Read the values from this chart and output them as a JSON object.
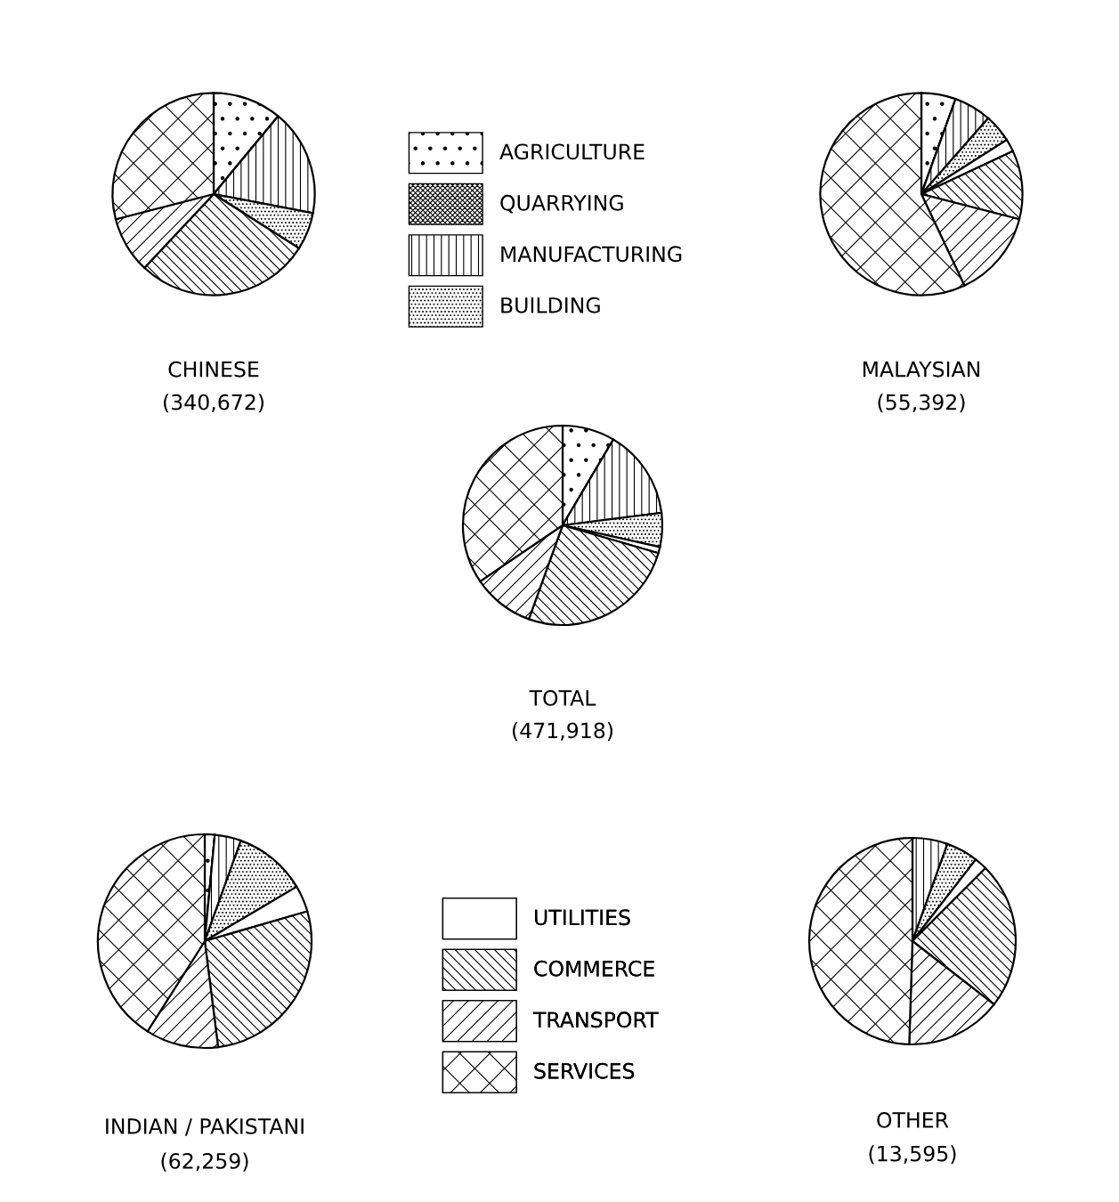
{
  "chart_data": [
    {
      "type": "pie",
      "title": "CHINESE",
      "subtitle": "(340,672)",
      "legend": "right",
      "categories": [
        "AGRICULTURE",
        "QUARRYING",
        "MANUFACTURING",
        "BUILDING",
        "UTILITIES",
        "COMMERCE",
        "TRANSPORT",
        "SERVICES"
      ],
      "values": [
        11,
        0,
        17,
        6,
        0,
        28,
        9,
        29
      ]
    },
    {
      "type": "pie",
      "title": "MALAYSIAN",
      "subtitle": "(55,392)",
      "categories": [
        null,
        null,
        null,
        null,
        null,
        null,
        null,
        null
      ],
      "values": [
        5.5,
        0,
        6,
        4.5,
        2,
        11,
        14,
        57
      ]
    },
    {
      "type": "pie",
      "title": "TOTAL",
      "subtitle": "(471,918)",
      "categories": [
        null,
        null,
        null,
        null,
        null,
        null,
        null,
        null
      ],
      "values": [
        8.5,
        0,
        14.5,
        5.5,
        1,
        26,
        10,
        34.5
      ]
    },
    {
      "type": "pie",
      "title": "INDIAN / PAKISTANI",
      "subtitle": "(62,259)",
      "categories": [
        null,
        null,
        null,
        null,
        null,
        null,
        null,
        null
      ],
      "values": [
        1.5,
        0,
        4,
        11,
        4,
        27.5,
        11,
        41
      ]
    },
    {
      "type": "pie",
      "title": "OTHER",
      "subtitle": "(13,595)",
      "categories": [
        null,
        null,
        null,
        null,
        null,
        null,
        null,
        null
      ],
      "values": [
        0,
        0,
        5.5,
        5,
        2,
        23,
        15,
        49.5
      ]
    }
  ]
}
